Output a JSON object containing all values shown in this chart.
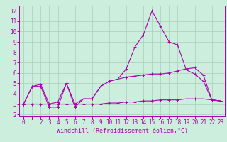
{
  "xlabel": "Windchill (Refroidissement éolien,°C)",
  "ylabel": "",
  "background_color": "#cceedd",
  "grid_color": "#aaccbb",
  "line_color": "#aa00aa",
  "x": [
    0,
    1,
    2,
    3,
    4,
    5,
    6,
    7,
    8,
    9,
    10,
    11,
    12,
    13,
    14,
    15,
    16,
    17,
    18,
    19,
    20,
    21,
    22,
    23
  ],
  "line1": [
    3.0,
    4.7,
    4.7,
    2.7,
    2.7,
    5.0,
    2.7,
    3.5,
    3.5,
    4.7,
    5.2,
    5.4,
    6.4,
    8.5,
    9.7,
    12.0,
    10.5,
    9.0,
    8.7,
    6.3,
    5.9,
    5.2,
    3.4,
    3.3
  ],
  "line2": [
    3.0,
    4.7,
    4.9,
    3.0,
    3.2,
    5.0,
    3.0,
    3.5,
    3.5,
    4.7,
    5.2,
    5.4,
    5.6,
    5.7,
    5.8,
    5.9,
    5.9,
    6.0,
    6.2,
    6.4,
    6.5,
    5.8,
    3.4,
    3.3
  ],
  "line3": [
    3.0,
    3.0,
    3.0,
    3.0,
    3.0,
    3.0,
    3.0,
    3.0,
    3.0,
    3.0,
    3.1,
    3.1,
    3.2,
    3.2,
    3.3,
    3.3,
    3.4,
    3.4,
    3.4,
    3.5,
    3.5,
    3.5,
    3.4,
    3.3
  ],
  "xlim": [
    -0.5,
    23.5
  ],
  "ylim": [
    1.8,
    12.5
  ],
  "yticks": [
    2,
    3,
    4,
    5,
    6,
    7,
    8,
    9,
    10,
    11,
    12
  ],
  "xticks": [
    0,
    1,
    2,
    3,
    4,
    5,
    6,
    7,
    8,
    9,
    10,
    11,
    12,
    13,
    14,
    15,
    16,
    17,
    18,
    19,
    20,
    21,
    22,
    23
  ],
  "tick_fontsize": 5.5,
  "xlabel_fontsize": 6.0,
  "linewidth": 0.8,
  "markersize": 3.5
}
